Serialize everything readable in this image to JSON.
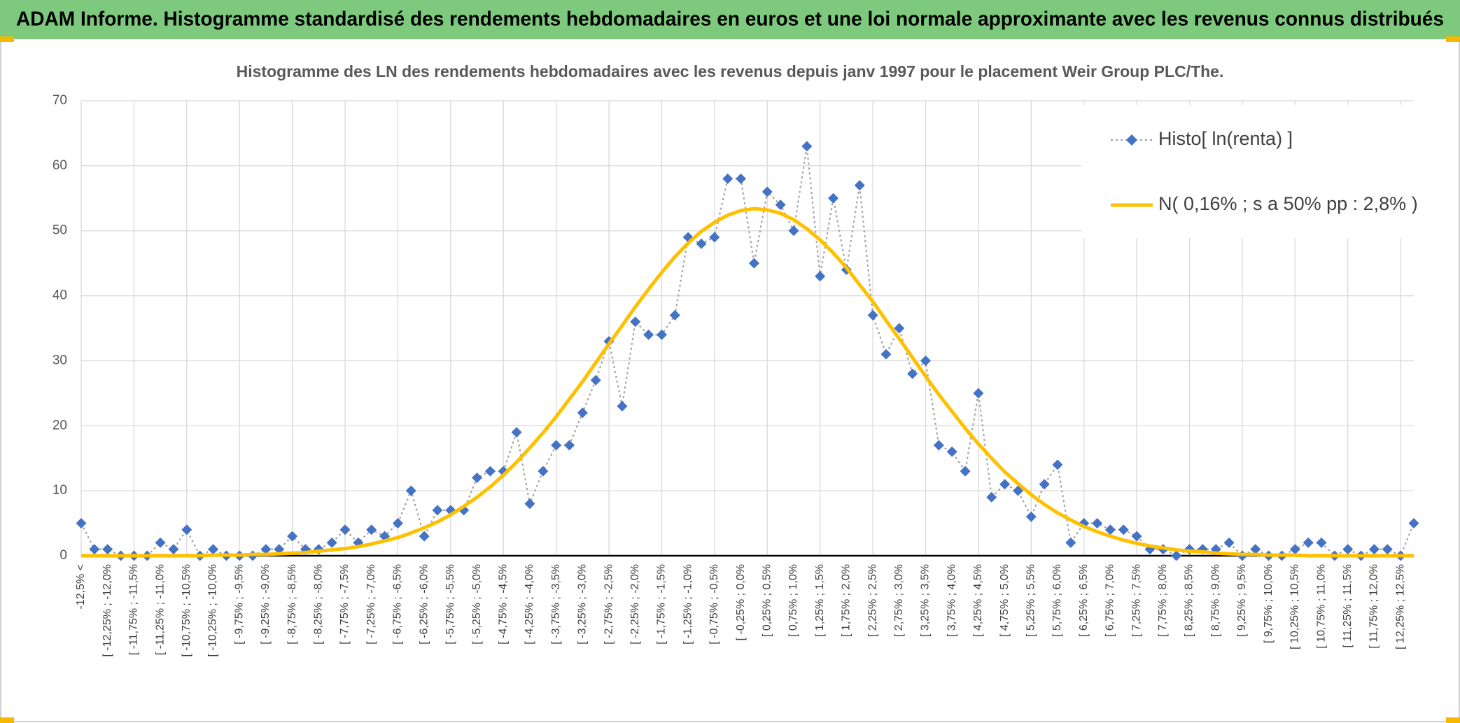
{
  "header": {
    "title": "ADAM Informe. Histogramme standardisé des rendements hebdomadaires en euros et une loi normale approximante avec les revenus connus distribués"
  },
  "chart_data": {
    "type": "line",
    "title": "Histogramme des LN des rendements hebdomadaires avec les revenus depuis janv 1997 pour le placement Weir Group PLC/The.",
    "categories": [
      "-12,5% <",
      null,
      "[ -12,25% ; -12,0%",
      null,
      "[ -11,75% ; -11,5%",
      null,
      "[ -11,25% ; -11,0%",
      null,
      "[ -10,75% ; -10,5%",
      null,
      "[ -10,25% ; -10,0%",
      null,
      "[ -9,75% ; -9,5%",
      null,
      "[ -9,25% ; -9,0%",
      null,
      "[ -8,75% ; -8,5%",
      null,
      "[ -8,25% ; -8,0%",
      null,
      "[ -7,75% ; -7,5%",
      null,
      "[ -7,25% ; -7,0%",
      null,
      "[ -6,75% ; -6,5%",
      null,
      "[ -6,25% ; -6,0%",
      null,
      "[ -5,75% ; -5,5%",
      null,
      "[ -5,25% ; -5,0%",
      null,
      "[ -4,75% ; -4,5%",
      null,
      "[ -4,25% ; -4,0%",
      null,
      "[ -3,75% ; -3,5%",
      null,
      "[ -3,25% ; -3,0%",
      null,
      "[ -2,75% ; -2,5%",
      null,
      "[ -2,25% ; -2,0%",
      null,
      "[ -1,75% ; -1,5%",
      null,
      "[ -1,25% ; -1,0%",
      null,
      "[ -0,75% ; -0,5%",
      null,
      "[ -0,25% ; 0,0%",
      null,
      "[ 0,25% ; 0,5%",
      null,
      "[ 0,75% ; 1,0%",
      null,
      "[ 1,25% ; 1,5%",
      null,
      "[ 1,75% ; 2,0%",
      null,
      "[ 2,25% ; 2,5%",
      null,
      "[ 2,75% ; 3,0%",
      null,
      "[ 3,25% ; 3,5%",
      null,
      "[ 3,75% ; 4,0%",
      null,
      "[ 4,25% ; 4,5%",
      null,
      "[ 4,75% ; 5,0%",
      null,
      "[ 5,25% ; 5,5%",
      null,
      "[ 5,75% ; 6,0%",
      null,
      "[ 6,25% ; 6,5%",
      null,
      "[ 6,75% ; 7,0%",
      null,
      "[ 7,25% ; 7,5%",
      null,
      "[ 7,75% ; 8,0%",
      null,
      "[ 8,25% ; 8,5%",
      null,
      "[ 8,75% ; 9,0%",
      null,
      "[ 9,25% ; 9,5%",
      null,
      "[ 9,75% ; 10,0%",
      null,
      "[ 10,25% ; 10,5%",
      null,
      "[ 10,75% ; 11,0%",
      null,
      "[ 11,25% ; 11,5%",
      null,
      "[ 11,75% ; 12,0%",
      null,
      "[ 12,25% ; 12,5%",
      null
    ],
    "series": [
      {
        "name": "Histo[ ln(renta) ]",
        "color": "#4472c4",
        "line_color": "#a5a5a5",
        "line_style": "dotted",
        "marker": "diamond",
        "values": [
          5,
          1,
          1,
          0,
          0,
          0,
          2,
          1,
          4,
          0,
          1,
          0,
          0,
          0,
          1,
          1,
          3,
          1,
          1,
          2,
          4,
          2,
          4,
          3,
          5,
          10,
          3,
          7,
          7,
          7,
          12,
          13,
          13,
          19,
          8,
          13,
          17,
          17,
          22,
          27,
          33,
          23,
          36,
          34,
          34,
          37,
          49,
          48,
          49,
          58,
          58,
          45,
          56,
          54,
          50,
          63,
          43,
          55,
          44,
          57,
          37,
          31,
          35,
          28,
          30,
          17,
          16,
          13,
          25,
          9,
          11,
          10,
          6,
          11,
          14,
          2,
          5,
          5,
          4,
          4,
          3,
          1,
          1,
          0,
          1,
          1,
          1,
          2,
          0,
          1,
          0,
          0,
          1,
          2,
          2,
          0,
          1,
          0,
          1,
          1,
          0,
          5
        ]
      },
      {
        "name": "N( 0,16% ; s a 50% pp : 2,8% )",
        "color": "#ffc000",
        "line_style": "solid",
        "values": [
          0,
          0,
          0,
          0,
          0,
          0,
          0,
          0,
          0,
          0,
          0.1,
          0.1,
          0.1,
          0.2,
          0.2,
          0.3,
          0.4,
          0.5,
          0.7,
          0.9,
          1.1,
          1.4,
          1.8,
          2.3,
          2.8,
          3.5,
          4.3,
          5.2,
          6.3,
          7.6,
          9.0,
          10.6,
          12.4,
          14.4,
          16.6,
          18.9,
          21.4,
          24.1,
          26.8,
          29.7,
          32.6,
          35.4,
          38.3,
          41.0,
          43.6,
          46.0,
          48.1,
          49.9,
          51.3,
          52.4,
          53.1,
          53.4,
          53.2,
          52.7,
          51.7,
          50.3,
          48.6,
          46.6,
          44.3,
          41.7,
          39.1,
          36.2,
          33.4,
          30.5,
          27.6,
          24.8,
          22.2,
          19.6,
          17.2,
          15.0,
          12.9,
          11.1,
          9.4,
          7.9,
          6.6,
          5.5,
          4.5,
          3.7,
          3.0,
          2.4,
          1.9,
          1.5,
          1.2,
          0.9,
          0.7,
          0.6,
          0.4,
          0.3,
          0.2,
          0.2,
          0.1,
          0.1,
          0.1,
          0,
          0,
          0,
          0,
          0,
          0,
          0,
          0,
          0
        ]
      }
    ],
    "ylim": [
      0,
      70
    ],
    "yticks": [
      0,
      10,
      20,
      30,
      40,
      50,
      60,
      70
    ],
    "grid": true,
    "legend": "top-right"
  }
}
